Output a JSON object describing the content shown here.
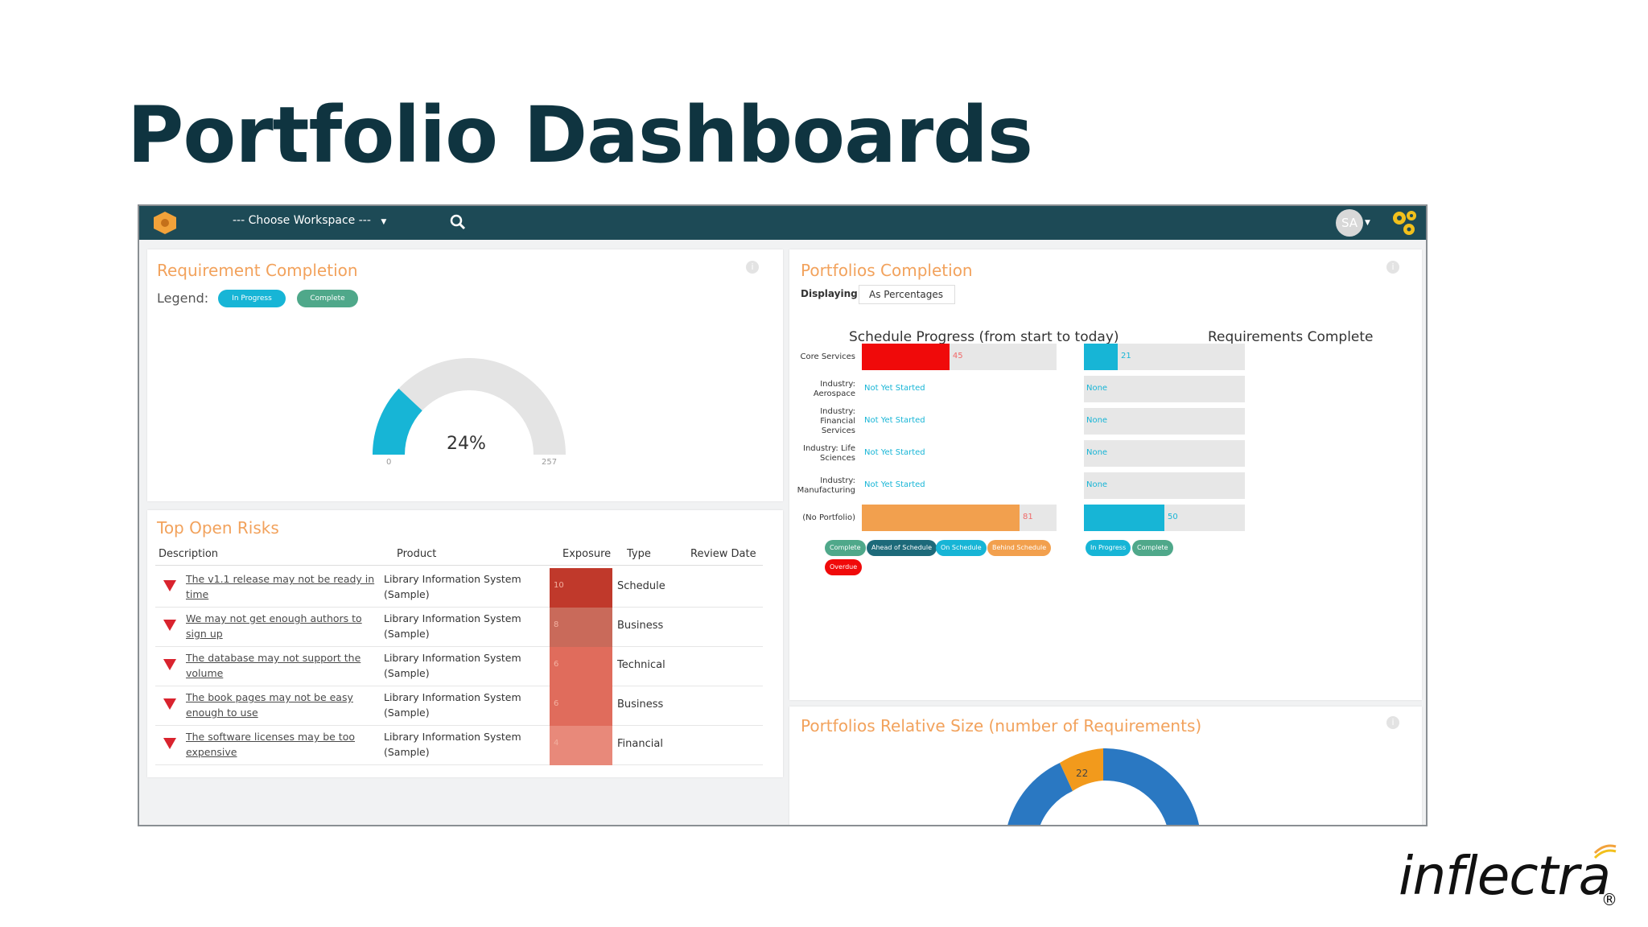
{
  "slide": {
    "title": "Portfolio Dashboards"
  },
  "topbar": {
    "workspace_label": "--- Choose Workspace ---",
    "avatar_initials": "SA"
  },
  "requirement_completion": {
    "title": "Requirement Completion",
    "legend_label": "Legend:",
    "legend": [
      {
        "label": "In Progress",
        "color": "#17b5d6"
      },
      {
        "label": "Complete",
        "color": "#4fa88a"
      }
    ],
    "gauge": {
      "percent_label": "24%",
      "min_label": "0",
      "max_label": "257",
      "fraction": 0.24
    }
  },
  "top_open_risks": {
    "title": "Top Open Risks",
    "columns": [
      "Description",
      "Product",
      "Exposure",
      "Type",
      "Review Date"
    ],
    "rows": [
      {
        "description": "The v1.1 release may not be ready in time",
        "product": "Library Information System (Sample)",
        "exposure": "10",
        "exposure_color": "#c0392b",
        "type": "Schedule"
      },
      {
        "description": "We may not get enough authors to sign up",
        "product": "Library Information System (Sample)",
        "exposure": "8",
        "exposure_color": "#c96a5a",
        "type": "Business"
      },
      {
        "description": "The database may not support the volume",
        "product": "Library Information System (Sample)",
        "exposure": "6",
        "exposure_color": "#e06c5c",
        "type": "Technical"
      },
      {
        "description": "The book pages may not be easy enough to use",
        "product": "Library Information System (Sample)",
        "exposure": "6",
        "exposure_color": "#e06c5c",
        "type": "Business"
      },
      {
        "description": "The software licenses may be too expensive",
        "product": "Library Information System (Sample)",
        "exposure": "4",
        "exposure_color": "#e8897a",
        "type": "Financial"
      }
    ]
  },
  "portfolios_completion": {
    "title": "Portfolios Completion",
    "displaying_label": "Displaying",
    "display_option": "As Percentages",
    "schedule_header": "Schedule Progress (from start to today)",
    "requirements_header": "Requirements Complete",
    "rows": [
      {
        "label": "Core Services",
        "schedule_value": 45,
        "schedule_text": "45",
        "schedule_color": "#f00a0a",
        "req_value": 21,
        "req_text": "21",
        "req_color": "#17b5d6"
      },
      {
        "label": "Industry: Aerospace",
        "schedule_value": 0,
        "schedule_text": "Not Yet Started",
        "schedule_color": "#17b5d6",
        "req_value": 0,
        "req_text": "None",
        "req_color": "#17b5d6"
      },
      {
        "label": "Industry: Financial Services",
        "schedule_value": 0,
        "schedule_text": "Not Yet Started",
        "schedule_color": "#17b5d6",
        "req_value": 0,
        "req_text": "None",
        "req_color": "#17b5d6"
      },
      {
        "label": "Industry: Life Sciences",
        "schedule_value": 0,
        "schedule_text": "Not Yet Started",
        "schedule_color": "#17b5d6",
        "req_value": 0,
        "req_text": "None",
        "req_color": "#17b5d6"
      },
      {
        "label": "Industry: Manufacturing",
        "schedule_value": 0,
        "schedule_text": "Not Yet Started",
        "schedule_color": "#17b5d6",
        "req_value": 0,
        "req_text": "None",
        "req_color": "#17b5d6"
      },
      {
        "label": "(No Portfolio)",
        "schedule_value": 81,
        "schedule_text": "81",
        "schedule_color": "#f2a04e",
        "req_value": 50,
        "req_text": "50",
        "req_color": "#17b5d6"
      }
    ],
    "schedule_legend": [
      {
        "label": "Complete",
        "color": "#4fa88a"
      },
      {
        "label": "Ahead of Schedule",
        "color": "#1d6a7a"
      },
      {
        "label": "On Schedule",
        "color": "#17b5d6"
      },
      {
        "label": "Behind Schedule",
        "color": "#f2a04e"
      },
      {
        "label": "Overdue",
        "color": "#f00a0a"
      }
    ],
    "requirements_legend": [
      {
        "label": "In Progress",
        "color": "#17b5d6"
      },
      {
        "label": "Complete",
        "color": "#4fa88a"
      }
    ]
  },
  "portfolios_relative_size": {
    "title": "Portfolios Relative Size (number of Requirements)",
    "visible_slice_label": "22"
  },
  "brand": {
    "name": "inflectra",
    "registered": "®"
  }
}
